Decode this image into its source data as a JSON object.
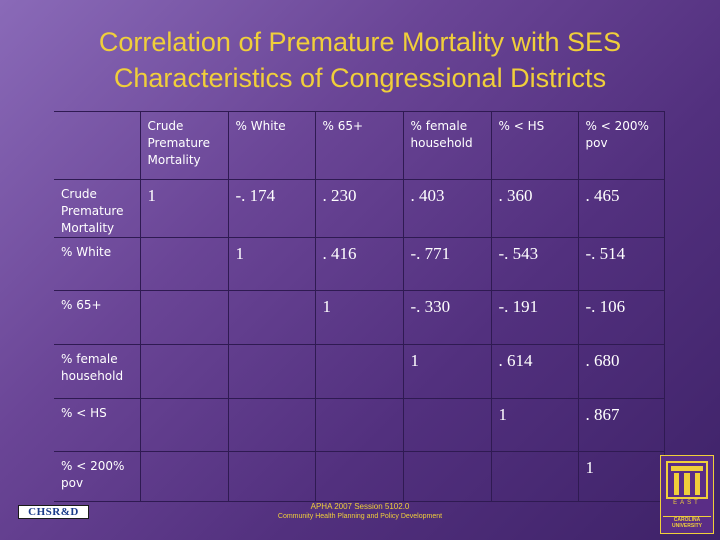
{
  "title": {
    "line1": "Correlation of Premature Mortality with SES",
    "line2": "Characteristics of Congressional Districts"
  },
  "table": {
    "headers": [
      "",
      "Crude Premature Mortality",
      "% White",
      "% 65+",
      "% female household",
      "% < HS",
      "% < 200% pov"
    ],
    "rows": [
      {
        "label": "Crude Premature Mortality",
        "cells": [
          "1",
          "-. 174",
          ". 230",
          ". 403",
          ". 360",
          ". 465"
        ]
      },
      {
        "label": "% White",
        "cells": [
          "",
          "1",
          ". 416",
          "-. 771",
          "-. 543",
          "-. 514"
        ]
      },
      {
        "label": "% 65+",
        "cells": [
          "",
          "",
          "1",
          "-. 330",
          "-. 191",
          "-. 106"
        ]
      },
      {
        "label": "% female household",
        "cells": [
          "",
          "",
          "",
          "1",
          ". 614",
          ". 680"
        ]
      },
      {
        "label": "% < HS",
        "cells": [
          "",
          "",
          "",
          "",
          "1",
          ". 867"
        ]
      },
      {
        "label": "% < 200% pov",
        "cells": [
          "",
          "",
          "",
          "",
          "",
          "1"
        ]
      }
    ]
  },
  "footer": {
    "line1": "APHA 2007 Session 5102.0",
    "line2": "Community Health Planning and Policy Development"
  },
  "logos": {
    "left_text": "CHSR&D",
    "ecu_letters": "EAST",
    "ecu_line1": "CAROLINA",
    "ecu_line2": "UNIVERSITY"
  },
  "colors": {
    "title": "#f0cf3a",
    "background_start": "#8a6ab8",
    "background_end": "#3e2268",
    "grid": "#2f1a52",
    "text": "#ffffff"
  }
}
